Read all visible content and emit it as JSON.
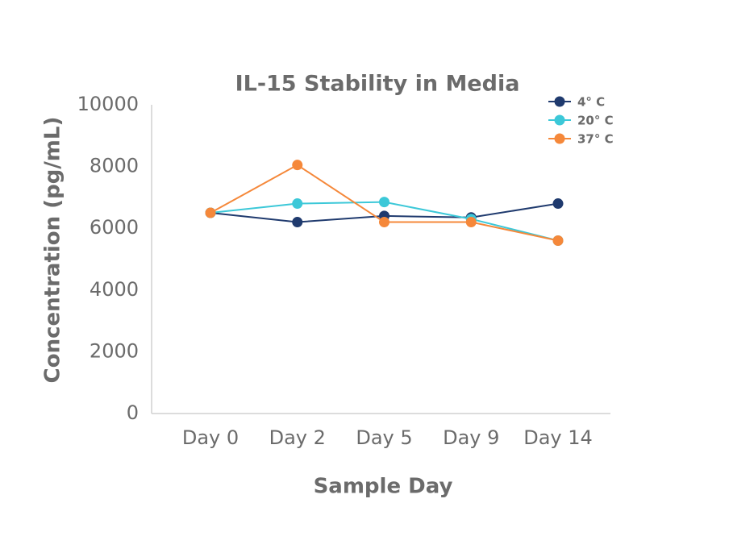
{
  "chart_data": {
    "type": "line",
    "title": "IL-15 Stability in Media",
    "x_label": "Sample Day",
    "y_label": "Concentration (pg/mL)",
    "categories": [
      "Day 0",
      "Day 2",
      "Day 5",
      "Day 9",
      "Day 14"
    ],
    "series": [
      {
        "name": "4° C",
        "color": "#1f3a6e",
        "values": [
          6500,
          6200,
          6400,
          6350,
          6800
        ]
      },
      {
        "name": "20° C",
        "color": "#3cc8d8",
        "values": [
          6500,
          6800,
          6850,
          6300,
          5600
        ]
      },
      {
        "name": "37° C",
        "color": "#f5883a",
        "values": [
          6500,
          8050,
          6200,
          6200,
          5600
        ]
      }
    ],
    "ylim": [
      0,
      10000
    ],
    "yticks": [
      0,
      2000,
      4000,
      6000,
      8000,
      10000
    ],
    "grid": false,
    "legend": "top-right"
  }
}
